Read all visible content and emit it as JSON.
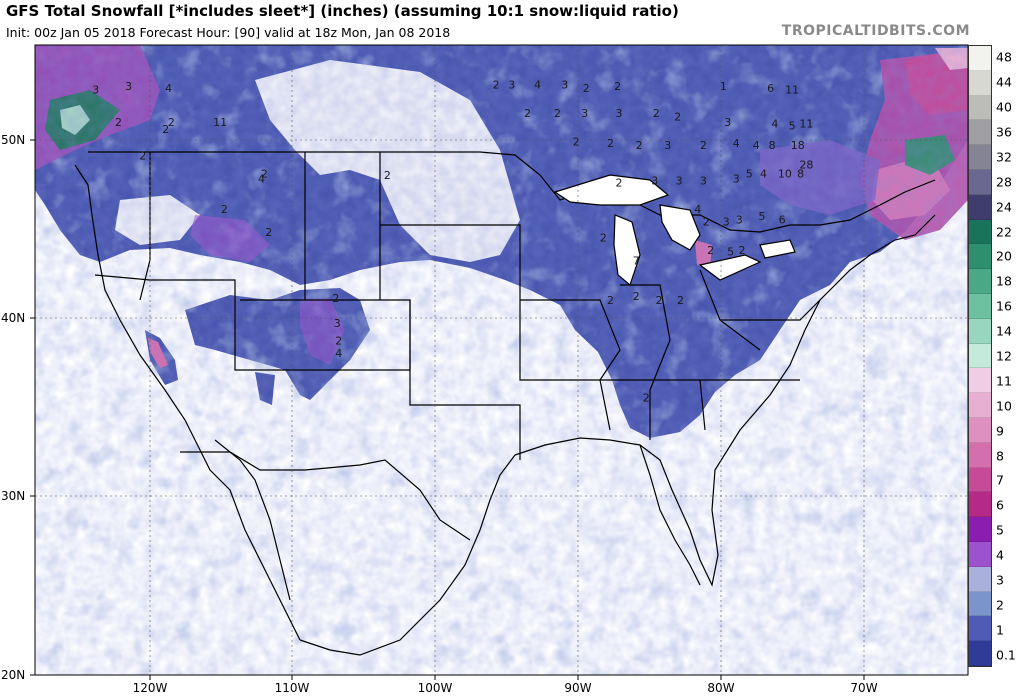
{
  "header": {
    "title": "GFS Total Snowfall [*includes sleet*] (inches) (assuming 10:1 snow:liquid ratio)",
    "init_line": "Init: 00z Jan 05 2018   Forecast Hour: [90]   valid at 18z Mon, Jan 08 2018",
    "brand": "TROPICALTIDBITS.COM"
  },
  "axes": {
    "lat_labels": [
      "50N",
      "40N",
      "30N",
      "20N"
    ],
    "lon_labels": [
      "120W",
      "110W",
      "100W",
      "90W",
      "80W",
      "70W"
    ]
  },
  "legend": {
    "levels": [
      "48",
      "44",
      "40",
      "36",
      "32",
      "28",
      "24",
      "22",
      "20",
      "18",
      "16",
      "14",
      "12",
      "11",
      "10",
      "9",
      "8",
      "7",
      "6",
      "5",
      "4",
      "3",
      "2",
      "1",
      "0.1"
    ],
    "colors": [
      "#f2f2ee",
      "#d8d8d2",
      "#bcbcb8",
      "#a0a0a4",
      "#858494",
      "#6a6890",
      "#3f3d6e",
      "#18735a",
      "#2e8f6e",
      "#4ba886",
      "#6dc0a0",
      "#98d6bf",
      "#c4eadc",
      "#f0cde4",
      "#e7b0d2",
      "#de91c0",
      "#d46fae",
      "#c64a98",
      "#b42a86",
      "#8a1cb0",
      "#9c52cc",
      "#aab0dc",
      "#7c94cc",
      "#4f5bb4",
      "#2f3b96"
    ]
  },
  "map_labels": [
    {
      "t": "3",
      "lon": -123.8,
      "lat": 52.6
    },
    {
      "t": "3",
      "lon": -121.5,
      "lat": 52.8
    },
    {
      "t": "4",
      "lon": -118.7,
      "lat": 52.7
    },
    {
      "t": "2",
      "lon": -122.2,
      "lat": 50.8
    },
    {
      "t": "2",
      "lon": -118.5,
      "lat": 50.8
    },
    {
      "t": "2",
      "lon": -118.9,
      "lat": 50.4
    },
    {
      "t": "11",
      "lon": -115.1,
      "lat": 50.8
    },
    {
      "t": "2",
      "lon": -120.5,
      "lat": 48.9
    },
    {
      "t": "2",
      "lon": -112.0,
      "lat": 47.9
    },
    {
      "t": "4",
      "lon": -112.2,
      "lat": 47.6
    },
    {
      "t": "2",
      "lon": -114.8,
      "lat": 45.9
    },
    {
      "t": "2",
      "lon": -111.7,
      "lat": 44.6
    },
    {
      "t": "2",
      "lon": -107.0,
      "lat": 40.9
    },
    {
      "t": "3",
      "lon": -106.9,
      "lat": 39.5
    },
    {
      "t": "2",
      "lon": -106.8,
      "lat": 38.5
    },
    {
      "t": "4",
      "lon": -106.8,
      "lat": 37.8
    },
    {
      "t": "2",
      "lon": -103.4,
      "lat": 47.8
    },
    {
      "t": "2",
      "lon": -95.8,
      "lat": 52.9
    },
    {
      "t": "3",
      "lon": -94.7,
      "lat": 52.9
    },
    {
      "t": "4",
      "lon": -92.9,
      "lat": 52.9
    },
    {
      "t": "3",
      "lon": -91.0,
      "lat": 52.9
    },
    {
      "t": "2",
      "lon": -89.5,
      "lat": 52.7
    },
    {
      "t": "2",
      "lon": -87.3,
      "lat": 52.8
    },
    {
      "t": "2",
      "lon": -93.6,
      "lat": 51.3
    },
    {
      "t": "2",
      "lon": -91.5,
      "lat": 51.3
    },
    {
      "t": "3",
      "lon": -89.6,
      "lat": 51.3
    },
    {
      "t": "3",
      "lon": -87.2,
      "lat": 51.3
    },
    {
      "t": "2",
      "lon": -84.6,
      "lat": 51.3
    },
    {
      "t": "2",
      "lon": -83.1,
      "lat": 51.1
    },
    {
      "t": "2",
      "lon": -90.2,
      "lat": 49.7
    },
    {
      "t": "2",
      "lon": -87.8,
      "lat": 49.6
    },
    {
      "t": "2",
      "lon": -85.8,
      "lat": 49.5
    },
    {
      "t": "3",
      "lon": -83.8,
      "lat": 49.5
    },
    {
      "t": "2",
      "lon": -81.3,
      "lat": 49.5
    },
    {
      "t": "2",
      "lon": -87.2,
      "lat": 47.4
    },
    {
      "t": "3",
      "lon": -84.7,
      "lat": 47.5
    },
    {
      "t": "3",
      "lon": -83.0,
      "lat": 47.5
    },
    {
      "t": "3",
      "lon": -81.3,
      "lat": 47.5
    },
    {
      "t": "3",
      "lon": -79.0,
      "lat": 47.6
    },
    {
      "t": "2",
      "lon": -81.1,
      "lat": 45.2
    },
    {
      "t": "3",
      "lon": -79.7,
      "lat": 45.2
    },
    {
      "t": "5",
      "lon": -79.4,
      "lat": 43.5
    },
    {
      "t": "2",
      "lon": -80.8,
      "lat": 43.6
    },
    {
      "t": "2",
      "lon": -78.6,
      "lat": 43.6
    },
    {
      "t": "2",
      "lon": -88.3,
      "lat": 44.3
    },
    {
      "t": "7",
      "lon": -86.0,
      "lat": 43.0
    },
    {
      "t": "2",
      "lon": -87.8,
      "lat": 40.8
    },
    {
      "t": "2",
      "lon": -86.0,
      "lat": 41.0
    },
    {
      "t": "2",
      "lon": -82.9,
      "lat": 40.8
    },
    {
      "t": "2",
      "lon": -84.4,
      "lat": 40.8
    },
    {
      "t": "2",
      "lon": -85.3,
      "lat": 35.3
    },
    {
      "t": "1",
      "lon": -79.9,
      "lat": 52.8
    },
    {
      "t": "6",
      "lon": -76.6,
      "lat": 52.7
    },
    {
      "t": "11",
      "lon": -75.1,
      "lat": 52.6
    },
    {
      "t": "4",
      "lon": -76.3,
      "lat": 50.7
    },
    {
      "t": "5",
      "lon": -75.1,
      "lat": 50.6
    },
    {
      "t": "11",
      "lon": -74.1,
      "lat": 50.7
    },
    {
      "t": "3",
      "lon": -79.6,
      "lat": 50.8
    },
    {
      "t": "4",
      "lon": -79.0,
      "lat": 49.6
    },
    {
      "t": "4",
      "lon": -77.6,
      "lat": 49.5
    },
    {
      "t": "8",
      "lon": -76.5,
      "lat": 49.5
    },
    {
      "t": "18",
      "lon": -74.7,
      "lat": 49.5
    },
    {
      "t": "5",
      "lon": -78.1,
      "lat": 47.9
    },
    {
      "t": "4",
      "lon": -77.1,
      "lat": 47.9
    },
    {
      "t": "10",
      "lon": -75.6,
      "lat": 47.9
    },
    {
      "t": "8",
      "lon": -74.5,
      "lat": 47.9
    },
    {
      "t": "28",
      "lon": -74.1,
      "lat": 48.4
    },
    {
      "t": "4",
      "lon": -81.7,
      "lat": 45.9
    },
    {
      "t": "3",
      "lon": -78.8,
      "lat": 45.3
    },
    {
      "t": "5",
      "lon": -77.2,
      "lat": 45.5
    },
    {
      "t": "6",
      "lon": -75.8,
      "lat": 45.3
    }
  ]
}
